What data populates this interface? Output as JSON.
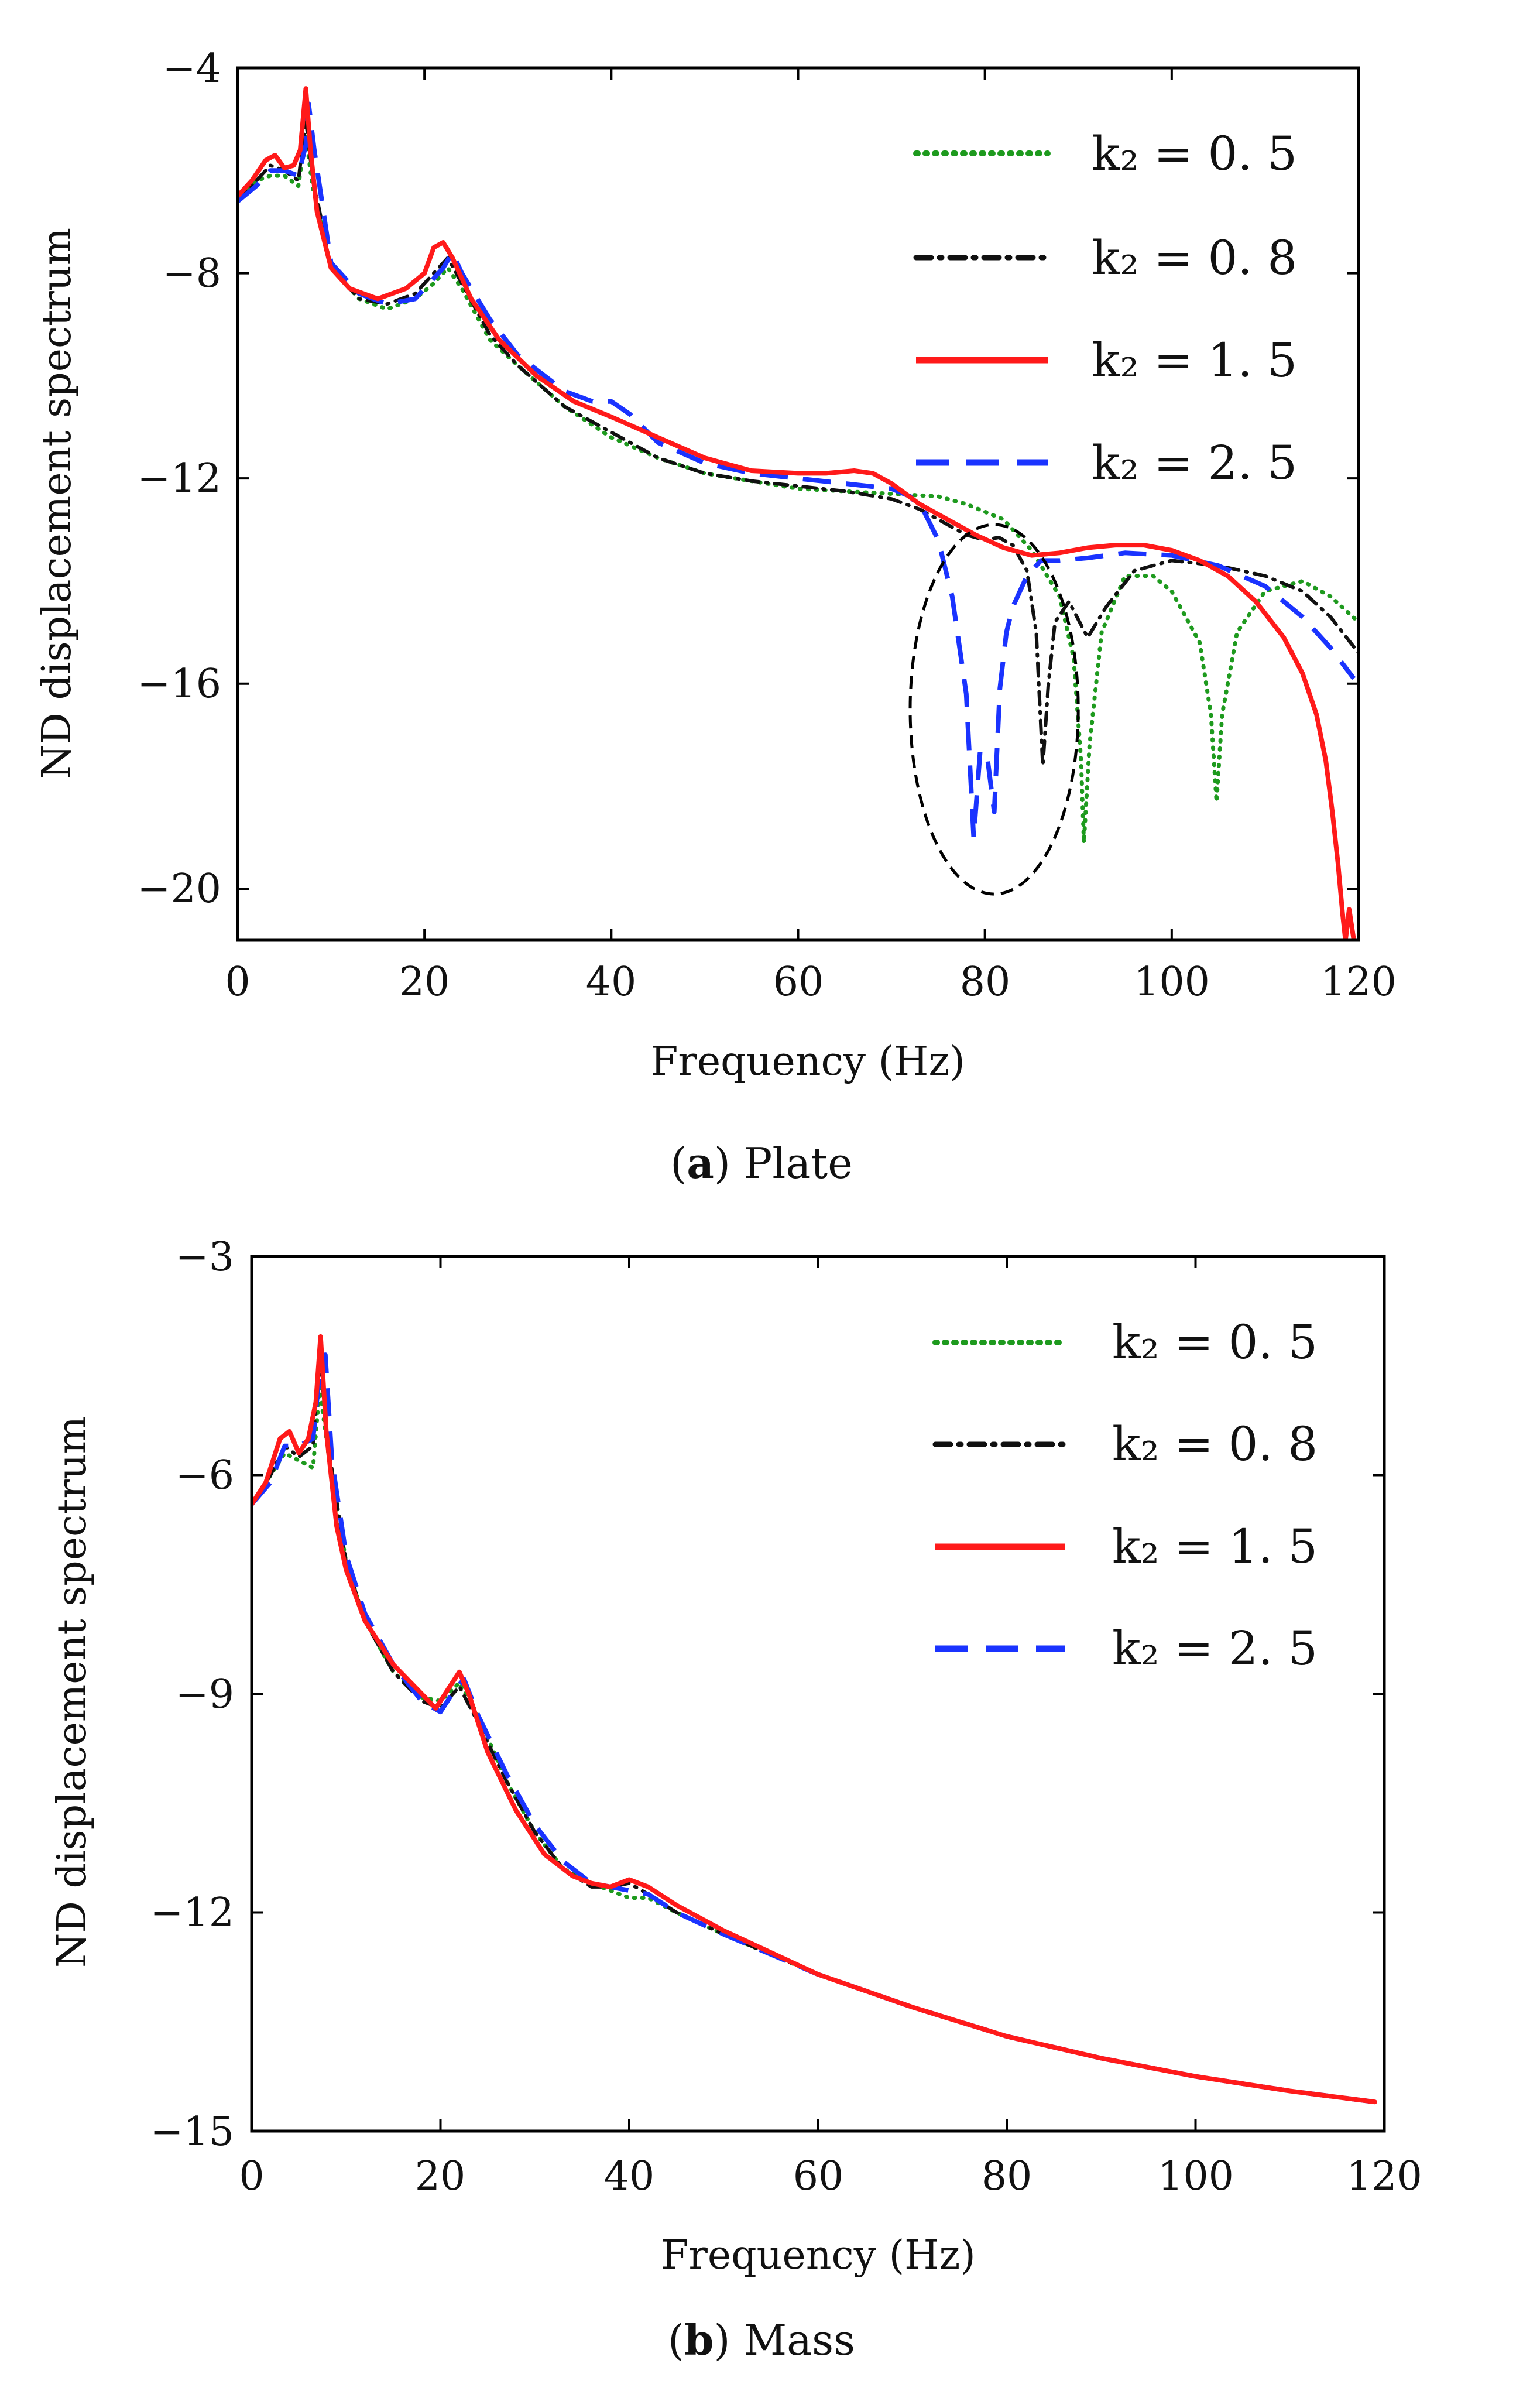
{
  "colors": {
    "k05": "#1e9a1e",
    "k08": "#111111",
    "k15": "#ff1a1a",
    "k25": "#1a33ff"
  },
  "legend_labels": [
    "k₂ = 0. 5",
    "k₂ = 0. 8",
    "k₂ = 1. 5",
    "k₂ = 2. 5"
  ],
  "chart_data": [
    {
      "type": "line",
      "caption_letter": "a",
      "caption_text": "Plate",
      "xlabel": "Frequency (Hz)",
      "ylabel": "ND displacement spectrum",
      "xlim": [
        0,
        120
      ],
      "ylim": [
        -21,
        -4
      ],
      "xticks": [
        0,
        20,
        40,
        60,
        80,
        100,
        120
      ],
      "yticks": [
        -4,
        -8,
        -12,
        -16,
        -20
      ],
      "tick_labels_x": [
        "0",
        "20",
        "40",
        "60",
        "80",
        "100",
        "120"
      ],
      "tick_labels_y": [
        "−4",
        "−8",
        "−12",
        "−16",
        "−20"
      ],
      "annotation": {
        "type": "dashed-ellipse",
        "center": [
          81,
          -16.5
        ],
        "rx": 9,
        "ry": 3.6
      },
      "series": [
        {
          "name": "k₂ = 0. 5",
          "style": "dotted",
          "x": [
            0,
            2,
            3.5,
            5,
            6.5,
            7.3,
            8,
            10,
            13,
            16,
            19,
            21,
            22.5,
            24,
            27,
            30,
            35,
            40,
            45,
            50,
            55,
            60,
            65,
            70,
            75,
            78,
            82,
            85,
            88,
            89.5,
            90.3,
            90.6,
            91.2,
            92.5,
            95,
            98,
            100,
            103,
            104.2,
            104.8,
            105.4,
            107,
            110,
            114,
            117,
            120
          ],
          "y": [
            -6.6,
            -6.2,
            -6.1,
            -6.1,
            -6.3,
            -5.3,
            -6.3,
            -7.9,
            -8.5,
            -8.7,
            -8.5,
            -8.2,
            -7.9,
            -8.3,
            -9.3,
            -9.8,
            -10.6,
            -11.2,
            -11.6,
            -11.9,
            -12.05,
            -12.2,
            -12.25,
            -12.3,
            -12.35,
            -12.5,
            -12.8,
            -13.4,
            -14.3,
            -15.5,
            -17.5,
            -19.1,
            -17.2,
            -15.0,
            -13.9,
            -13.9,
            -14.2,
            -15.2,
            -16.6,
            -18.3,
            -16.6,
            -15.0,
            -14.2,
            -14.0,
            -14.3,
            -14.8
          ]
        },
        {
          "name": "k₂ = 0. 8",
          "style": "dashdot",
          "x": [
            0,
            2,
            3.5,
            5,
            6.5,
            7.3,
            8,
            10,
            13,
            16,
            19,
            21,
            22.5,
            24,
            27,
            30,
            35,
            38,
            40,
            42,
            45,
            50,
            55,
            60,
            65,
            70,
            73,
            75,
            78,
            80,
            81.5,
            83,
            84.5,
            85.5,
            86.2,
            86.8,
            87.5,
            89,
            91,
            93,
            96,
            100,
            105,
            110,
            114,
            117,
            120
          ],
          "y": [
            -6.6,
            -6.2,
            -5.9,
            -6.0,
            -6.2,
            -5.0,
            -6.1,
            -7.9,
            -8.5,
            -8.6,
            -8.4,
            -8.0,
            -7.7,
            -8.2,
            -9.2,
            -9.8,
            -10.6,
            -10.9,
            -11.1,
            -11.3,
            -11.6,
            -11.9,
            -12.05,
            -12.15,
            -12.25,
            -12.4,
            -12.6,
            -12.8,
            -13.1,
            -13.2,
            -13.15,
            -13.3,
            -13.8,
            -15.0,
            -17.6,
            -16.0,
            -14.8,
            -14.4,
            -15.1,
            -14.5,
            -13.8,
            -13.6,
            -13.7,
            -13.9,
            -14.2,
            -14.7,
            -15.4
          ]
        },
        {
          "name": "k₂ = 1. 5",
          "style": "solid",
          "x": [
            0,
            1.5,
            3,
            4,
            5,
            6,
            6.7,
            7.3,
            7.8,
            8.5,
            10,
            12,
            15,
            18,
            20,
            21,
            22,
            23,
            25,
            28,
            32,
            36,
            40,
            45,
            50,
            55,
            60,
            63,
            66,
            68,
            70,
            73,
            76,
            79,
            82,
            85,
            88,
            91,
            94,
            97,
            100,
            103,
            106,
            109,
            112,
            114,
            115.5,
            116.5,
            117.2,
            117.8,
            118.3,
            118.6,
            119,
            119.5
          ],
          "y": [
            -6.5,
            -6.2,
            -5.8,
            -5.7,
            -5.95,
            -5.9,
            -5.6,
            -4.4,
            -5.6,
            -6.8,
            -7.9,
            -8.3,
            -8.5,
            -8.3,
            -8.0,
            -7.5,
            -7.4,
            -7.7,
            -8.5,
            -9.3,
            -10.0,
            -10.5,
            -10.8,
            -11.2,
            -11.6,
            -11.85,
            -11.9,
            -11.9,
            -11.85,
            -11.9,
            -12.1,
            -12.5,
            -12.8,
            -13.1,
            -13.35,
            -13.5,
            -13.45,
            -13.35,
            -13.3,
            -13.3,
            -13.4,
            -13.6,
            -13.9,
            -14.4,
            -15.1,
            -15.8,
            -16.6,
            -17.5,
            -18.5,
            -19.5,
            -20.5,
            -21,
            -20.4,
            -21
          ]
        },
        {
          "name": "k₂ = 2. 5",
          "style": "dashed",
          "x": [
            0,
            2,
            3.5,
            5,
            6.5,
            7.3,
            7.6,
            8.2,
            10,
            13,
            16,
            19,
            21,
            22,
            23,
            24,
            27,
            30,
            35,
            38,
            40,
            42,
            45,
            50,
            55,
            60,
            65,
            70,
            72,
            73.5,
            75,
            76.5,
            78,
            78.8,
            79.5,
            80.3,
            81,
            81.6,
            82.3,
            83,
            84.5,
            86,
            88,
            91,
            95,
            100,
            105,
            110,
            114,
            117,
            119.5
          ],
          "y": [
            -6.6,
            -6.3,
            -6.0,
            -6.0,
            -6.1,
            -5.5,
            -4.7,
            -5.6,
            -7.8,
            -8.4,
            -8.6,
            -8.5,
            -8.1,
            -7.9,
            -7.6,
            -8.0,
            -8.9,
            -9.6,
            -10.3,
            -10.5,
            -10.5,
            -10.75,
            -11.3,
            -11.7,
            -11.9,
            -12.0,
            -12.1,
            -12.2,
            -12.35,
            -12.65,
            -13.2,
            -14.3,
            -16.2,
            -19.0,
            -17.3,
            -17.5,
            -18.5,
            -16.1,
            -15.0,
            -14.5,
            -13.9,
            -13.6,
            -13.6,
            -13.55,
            -13.45,
            -13.5,
            -13.7,
            -14.1,
            -14.7,
            -15.3,
            -15.9
          ]
        }
      ]
    },
    {
      "type": "line",
      "caption_letter": "b",
      "caption_text": "Mass",
      "xlabel": "Frequency (Hz)",
      "ylabel": "ND displacement spectrum",
      "xlim": [
        0,
        120
      ],
      "ylim": [
        -15,
        -3
      ],
      "xticks": [
        0,
        20,
        40,
        60,
        80,
        100,
        120
      ],
      "yticks": [
        -3,
        -6,
        -9,
        -12,
        -15
      ],
      "tick_labels_x": [
        "0",
        "20",
        "40",
        "60",
        "80",
        "100",
        "120"
      ],
      "tick_labels_y": [
        "−3",
        "−6",
        "−9",
        "−12",
        "−15"
      ],
      "series": [
        {
          "name": "k₂ = 0. 5",
          "style": "dotted",
          "x": [
            0,
            2,
            3.5,
            5,
            6.5,
            7.2,
            8,
            10,
            12,
            15,
            18,
            20,
            22,
            24,
            27,
            30,
            33,
            36,
            38,
            40,
            42,
            45,
            50,
            60,
            70,
            80,
            90,
            100,
            110,
            119
          ],
          "y": [
            -6.4,
            -6.0,
            -5.7,
            -5.8,
            -5.9,
            -4.8,
            -5.6,
            -7.2,
            -8.0,
            -8.7,
            -9.05,
            -9.1,
            -8.85,
            -9.3,
            -10.2,
            -10.9,
            -11.4,
            -11.6,
            -11.7,
            -11.8,
            -11.8,
            -12.0,
            -12.3,
            -12.85,
            -13.3,
            -13.7,
            -14.0,
            -14.25,
            -14.45,
            -14.6
          ]
        },
        {
          "name": "k₂ = 0. 8",
          "style": "dashdot",
          "x": [
            0,
            2,
            3.5,
            5,
            6.5,
            7.2,
            8,
            10,
            12,
            15,
            18,
            20,
            22,
            24,
            27,
            30,
            33,
            36,
            38,
            40,
            42,
            45,
            50,
            60,
            70,
            80,
            90,
            100,
            110,
            119
          ],
          "y": [
            -6.4,
            -6.0,
            -5.6,
            -5.75,
            -5.6,
            -4.3,
            -5.5,
            -7.2,
            -8.0,
            -8.7,
            -9.1,
            -9.2,
            -8.9,
            -9.4,
            -10.2,
            -10.9,
            -11.4,
            -11.65,
            -11.65,
            -11.6,
            -11.75,
            -12.0,
            -12.3,
            -12.85,
            -13.3,
            -13.7,
            -14.0,
            -14.25,
            -14.45,
            -14.6
          ]
        },
        {
          "name": "k₂ = 1. 5",
          "style": "solid",
          "x": [
            0,
            1.5,
            3,
            4,
            5,
            6,
            6.8,
            7.3,
            7.9,
            9,
            10,
            12,
            15,
            18,
            19.5,
            21,
            22,
            23,
            25,
            28,
            31,
            34,
            36,
            38,
            40,
            42,
            45,
            50,
            60,
            70,
            80,
            90,
            100,
            110,
            119
          ],
          "y": [
            -6.4,
            -6.1,
            -5.5,
            -5.4,
            -5.7,
            -5.5,
            -5.0,
            -4.1,
            -5.4,
            -6.7,
            -7.3,
            -8.0,
            -8.6,
            -9.0,
            -9.2,
            -8.9,
            -8.7,
            -9.0,
            -9.8,
            -10.6,
            -11.2,
            -11.5,
            -11.6,
            -11.65,
            -11.55,
            -11.65,
            -11.9,
            -12.25,
            -12.85,
            -13.3,
            -13.7,
            -14.0,
            -14.25,
            -14.45,
            -14.6
          ]
        },
        {
          "name": "k₂ = 2. 5",
          "style": "dashed",
          "x": [
            0,
            2,
            3.5,
            5,
            6.5,
            7.2,
            7.8,
            8.5,
            10,
            12,
            15,
            18,
            20,
            21.5,
            22.5,
            24,
            27,
            30,
            33,
            36,
            38,
            40,
            42,
            45,
            50,
            60,
            70,
            80,
            90,
            100,
            110,
            119
          ],
          "y": [
            -6.4,
            -6.1,
            -5.6,
            -5.6,
            -5.5,
            -4.6,
            -4.35,
            -5.8,
            -7.1,
            -7.9,
            -8.6,
            -9.1,
            -9.25,
            -8.95,
            -8.8,
            -9.3,
            -10.1,
            -10.8,
            -11.3,
            -11.6,
            -11.65,
            -11.7,
            -11.75,
            -12.0,
            -12.3,
            -12.85,
            -13.3,
            -13.7,
            -14.0,
            -14.25,
            -14.45,
            -14.6
          ]
        }
      ]
    }
  ]
}
